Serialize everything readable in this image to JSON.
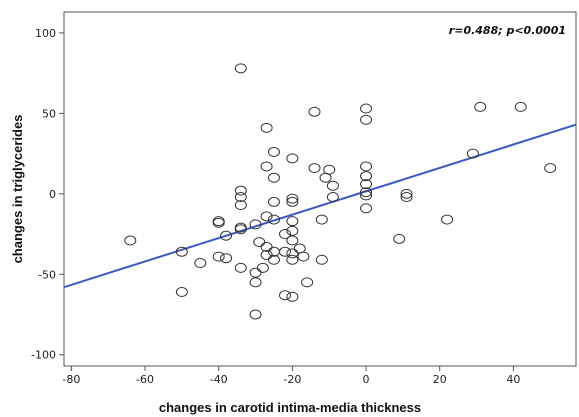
{
  "chart_data": {
    "type": "scatter",
    "xlabel": "changes in carotid intima-media thickness",
    "ylabel": "changes in triglycerides",
    "annotation": "r=0.488; p<0.0001",
    "xlim": [
      -82,
      57
    ],
    "ylim": [
      -107,
      113
    ],
    "xticks": [
      -80,
      -60,
      -40,
      -20,
      0,
      20,
      40
    ],
    "yticks": [
      100,
      50,
      0,
      -50,
      -100
    ],
    "grid": false,
    "marker": "open-circle",
    "fit_line": {
      "x": [
        -82,
        57
      ],
      "y": [
        -58,
        43
      ],
      "color": "#3a5bc7"
    },
    "points": [
      [
        -64,
        -29
      ],
      [
        -50,
        -36
      ],
      [
        -50,
        -61
      ],
      [
        -45,
        -43
      ],
      [
        -40,
        -17
      ],
      [
        -40,
        -18
      ],
      [
        -40,
        -39
      ],
      [
        -38,
        -40
      ],
      [
        -38,
        -26
      ],
      [
        -34,
        78
      ],
      [
        -34,
        2
      ],
      [
        -34,
        -2
      ],
      [
        -34,
        -7
      ],
      [
        -34,
        -21
      ],
      [
        -34,
        -22
      ],
      [
        -34,
        -46
      ],
      [
        -30,
        -19
      ],
      [
        -30,
        -49
      ],
      [
        -30,
        -55
      ],
      [
        -30,
        -75
      ],
      [
        -29,
        -30
      ],
      [
        -28,
        -46
      ],
      [
        -27,
        41
      ],
      [
        -27,
        17
      ],
      [
        -27,
        -14
      ],
      [
        -27,
        -33
      ],
      [
        -27,
        -38
      ],
      [
        -25,
        26
      ],
      [
        -25,
        10
      ],
      [
        -25,
        -5
      ],
      [
        -25,
        -16
      ],
      [
        -25,
        -36
      ],
      [
        -25,
        -41
      ],
      [
        -22,
        -25
      ],
      [
        -22,
        -36
      ],
      [
        -22,
        -63
      ],
      [
        -20,
        22
      ],
      [
        -20,
        -3
      ],
      [
        -20,
        -5
      ],
      [
        -20,
        -17
      ],
      [
        -20,
        -23
      ],
      [
        -20,
        -29
      ],
      [
        -20,
        -37
      ],
      [
        -20,
        -41
      ],
      [
        -20,
        -64
      ],
      [
        -18,
        -34
      ],
      [
        -17,
        -39
      ],
      [
        -16,
        -55
      ],
      [
        -14,
        51
      ],
      [
        -14,
        16
      ],
      [
        -12,
        -16
      ],
      [
        -12,
        -41
      ],
      [
        -11,
        10
      ],
      [
        -10,
        15
      ],
      [
        -9,
        -2
      ],
      [
        -9,
        5
      ],
      [
        0,
        53
      ],
      [
        0,
        46
      ],
      [
        0,
        17
      ],
      [
        0,
        11
      ],
      [
        0,
        6
      ],
      [
        0,
        1
      ],
      [
        0,
        -1
      ],
      [
        0,
        -9
      ],
      [
        9,
        -28
      ],
      [
        11,
        -2
      ],
      [
        11,
        0
      ],
      [
        22,
        -16
      ],
      [
        29,
        25
      ],
      [
        31,
        54
      ],
      [
        42,
        54
      ],
      [
        50,
        16
      ]
    ]
  }
}
